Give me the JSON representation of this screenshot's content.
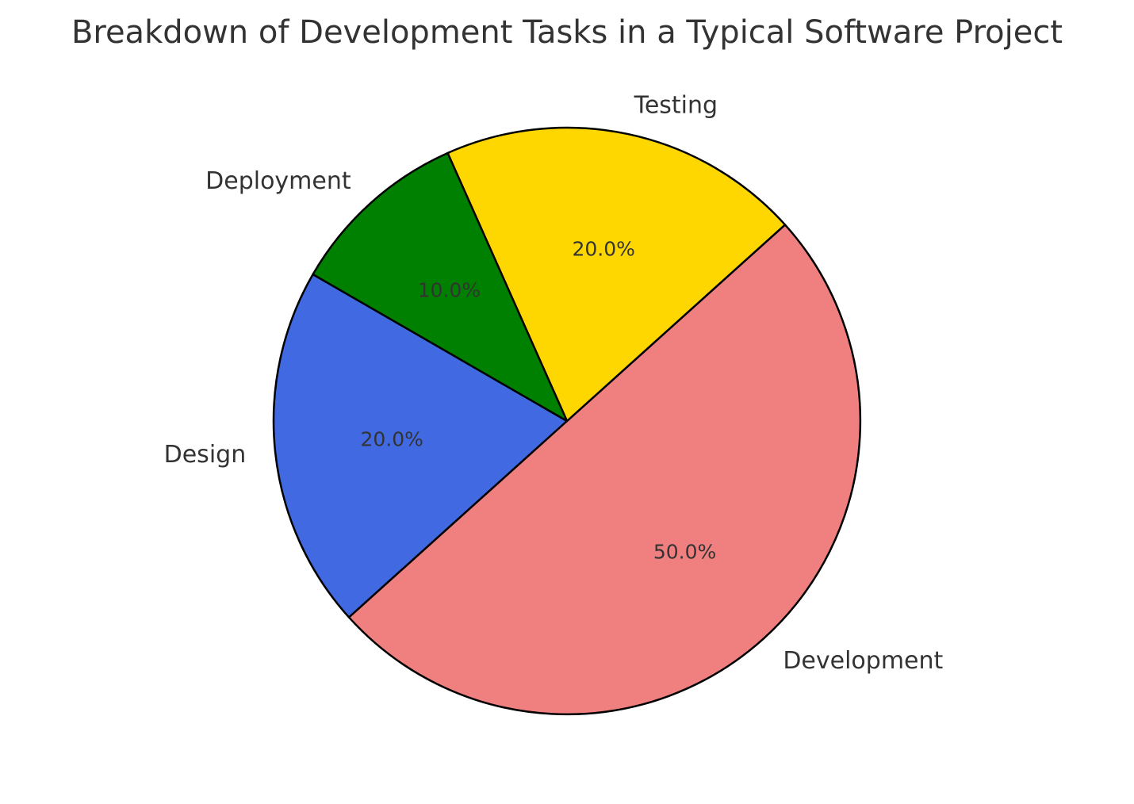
{
  "chart_data": {
    "type": "pie",
    "title": "Breakdown of Development Tasks in a Typical Software Project",
    "start_angle_deg": 150,
    "direction": "counterclockwise",
    "slices": [
      {
        "label": "Design",
        "value": 20,
        "pct_label": "20.0%",
        "color": "#4169E1"
      },
      {
        "label": "Development",
        "value": 50,
        "pct_label": "50.0%",
        "color": "#F08080"
      },
      {
        "label": "Testing",
        "value": 20,
        "pct_label": "20.0%",
        "color": "#FFD700"
      },
      {
        "label": "Deployment",
        "value": 10,
        "pct_label": "10.0%",
        "color": "#008000"
      }
    ],
    "legend": "none"
  }
}
